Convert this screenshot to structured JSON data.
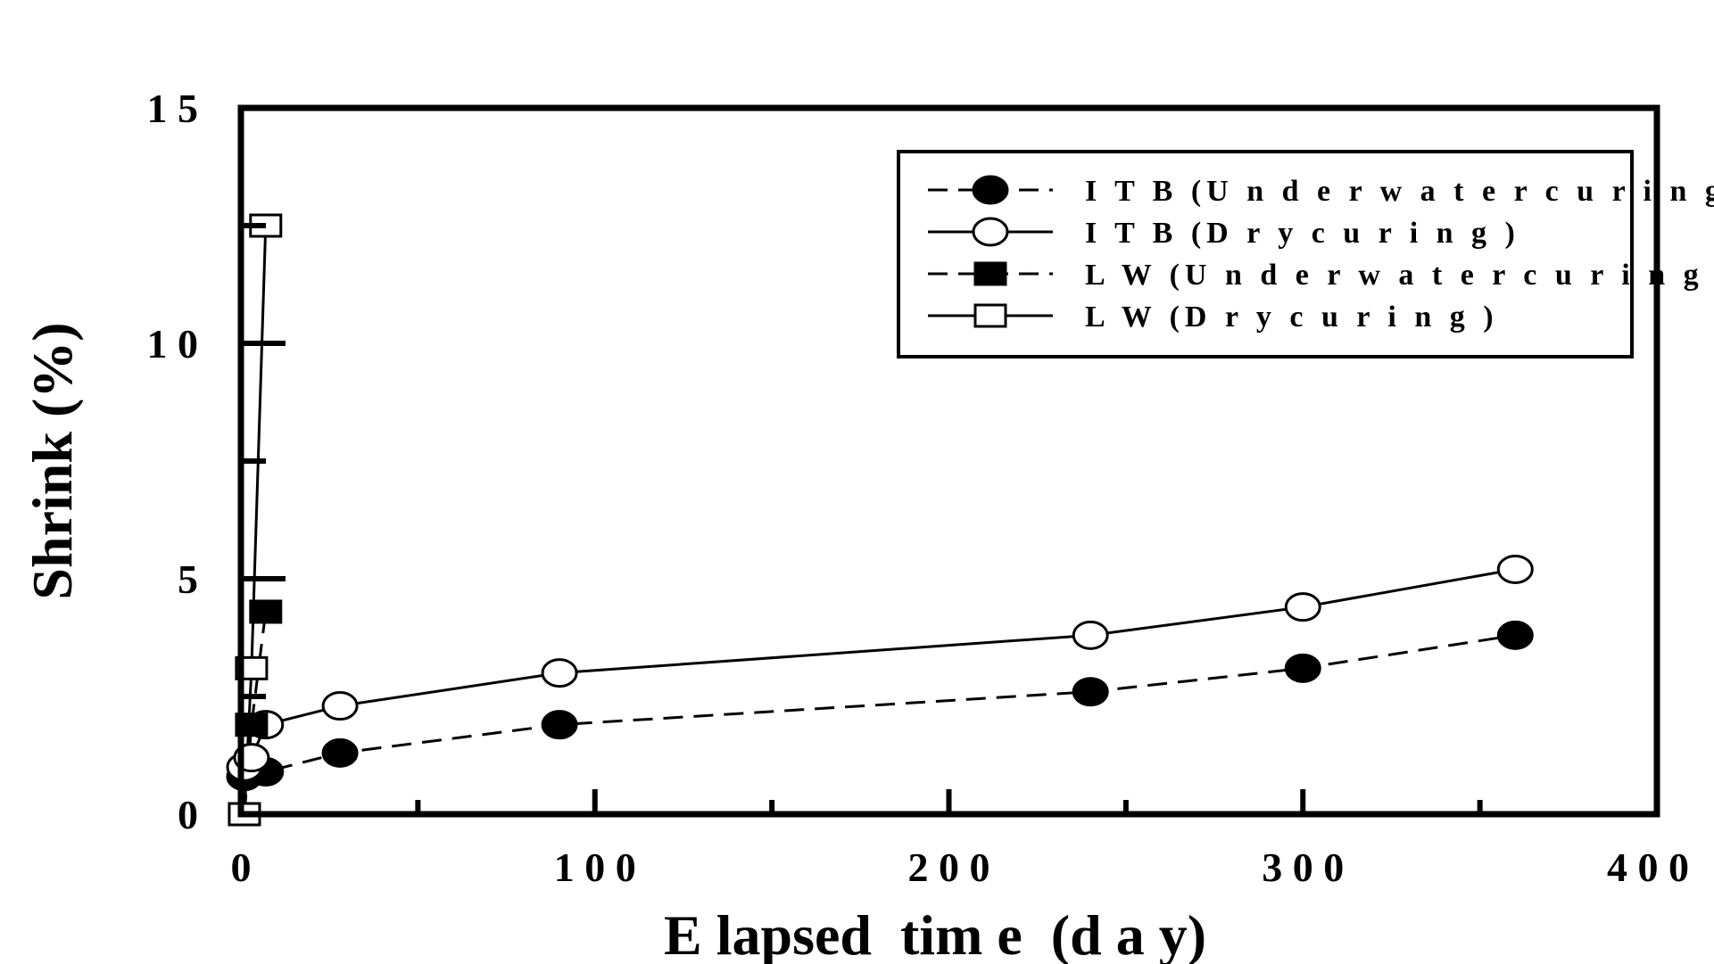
{
  "chart_data": {
    "type": "line",
    "title": "",
    "xlabel": "E lapsed  tim e  (d a y)",
    "ylabel": "Shrink (%)",
    "xlim": [
      0,
      400
    ],
    "ylim": [
      0,
      15
    ],
    "xticks": [
      0,
      100,
      200,
      300,
      400
    ],
    "yticks": [
      0,
      5,
      10,
      15
    ],
    "xtick_labels": [
      "0",
      "1 0 0",
      "2 0 0",
      "3 0 0",
      "4 0 0"
    ],
    "ytick_labels": [
      "0",
      "5",
      "1 0",
      "1 5"
    ],
    "grid": false,
    "legend_position": "top-right",
    "series": [
      {
        "name": "I T B (U n d e r w a t e r  c u r i n g )",
        "marker": "filled-circle",
        "line": "dashed",
        "x": [
          1,
          3,
          7,
          28,
          90,
          240,
          300,
          360
        ],
        "y": [
          0.8,
          0.9,
          0.9,
          1.3,
          1.9,
          2.6,
          3.1,
          3.8
        ]
      },
      {
        "name": "I T B  (D r y  c u r i n g )",
        "marker": "open-circle",
        "line": "solid",
        "x": [
          1,
          3,
          7,
          28,
          90,
          240,
          300,
          360
        ],
        "y": [
          1.0,
          1.2,
          1.9,
          2.3,
          3.0,
          3.8,
          4.4,
          5.2
        ]
      },
      {
        "name": "L W  (U n d e r w a t e r  c u r i n g )",
        "marker": "filled-square",
        "line": "dashed",
        "x": [
          1,
          3,
          7
        ],
        "y": [
          0.0,
          1.9,
          4.3
        ]
      },
      {
        "name": "L W  (D r y  c u r i n g )",
        "marker": "open-square",
        "line": "solid",
        "x": [
          1,
          3,
          7
        ],
        "y": [
          0.0,
          3.1,
          12.5
        ]
      }
    ]
  }
}
